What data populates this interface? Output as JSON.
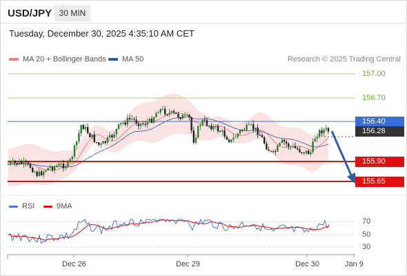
{
  "header": {
    "symbol": "USD/JPY",
    "timeframe": "30 MIN",
    "datetime": "Tuesday, December 30, 2025 4:35:10 AM CET"
  },
  "legend": {
    "ma20": {
      "label": "MA 20 + Bollinger Bands",
      "color": "#f08080"
    },
    "ma50": {
      "label": "MA 50",
      "color": "#2f5d9c"
    },
    "copyright": "Research © 2025 Trading Central"
  },
  "levels": {
    "resistance": [
      {
        "label": "157.00",
        "color": "#7cbf4a"
      },
      {
        "label": "156.70",
        "color": "#7cbf4a"
      }
    ],
    "pivot": {
      "label": "156.40",
      "color": "#3a6fd8"
    },
    "last_price": {
      "label": "156.28",
      "color": "#333333"
    },
    "support": [
      {
        "label": "155.90",
        "color": "#e01010"
      },
      {
        "label": "155.65",
        "color": "#e01010"
      }
    ]
  },
  "rsi": {
    "rsi_label": "RSI",
    "rsi_color": "#4a74d9",
    "ma_label": "9MA",
    "ma_color": "#e01010",
    "levels": [
      "70",
      "50",
      "30"
    ]
  },
  "x_axis": {
    "ticks": [
      "Dec 26",
      "Dec 29",
      "Dec 30",
      "Jan 9"
    ]
  },
  "arrow": {
    "direction": "down",
    "color": "#2f5d9c"
  }
}
